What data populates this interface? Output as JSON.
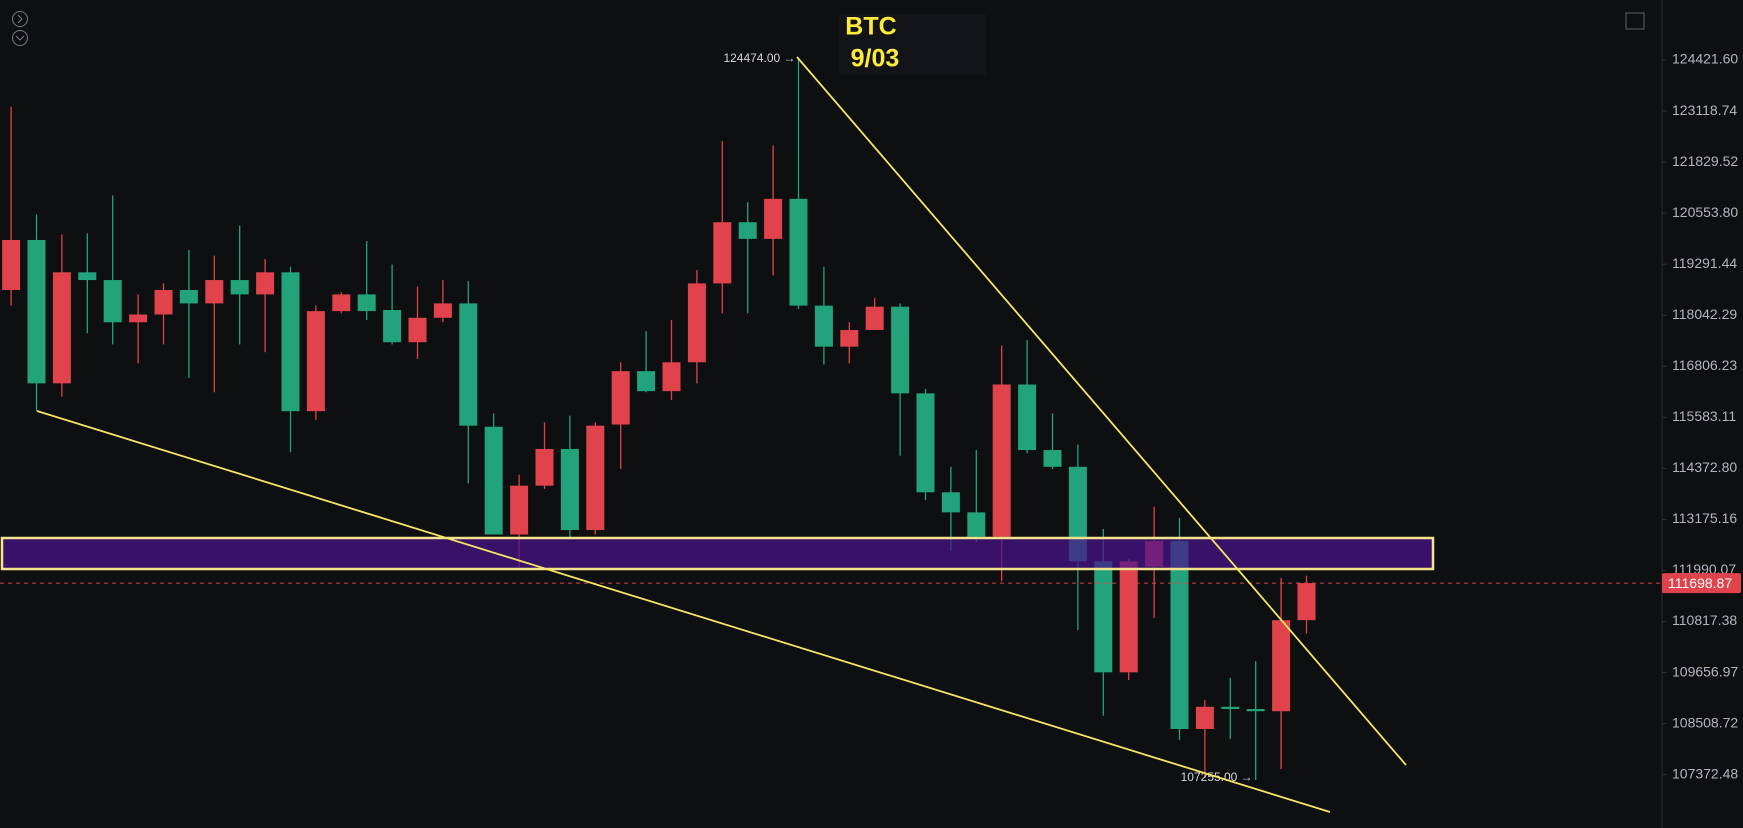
{
  "chart_data": {
    "type": "candlestick",
    "title": "BTC",
    "subtitle": "9/03",
    "log": true,
    "colors": {
      "up": "#e0434c",
      "down": "#23a37c"
    },
    "open": [
      118658,
      119889,
      116396,
      119092,
      118902,
      117872,
      118061,
      118658,
      118331,
      118902,
      118551,
      119092,
      115730,
      118143,
      118551,
      118170,
      117388,
      117980,
      118331,
      115359,
      112824,
      113966,
      114832,
      112927,
      115412,
      116689,
      116209,
      116903,
      118820,
      120329,
      119916,
      120910,
      118277,
      117280,
      117684,
      118251,
      116156,
      113810,
      113340,
      112773,
      116369,
      114806,
      114410,
      112204,
      109662,
      112076,
      112670,
      108388,
      108886,
      108836,
      108786,
      110848
    ],
    "high": [
      123229,
      120521,
      120026,
      120054,
      120994,
      118551,
      118820,
      119642,
      119504,
      120246,
      119422,
      119229,
      118277,
      118603,
      119862,
      119283,
      118739,
      118902,
      118875,
      115676,
      114227,
      115464,
      115623,
      115464,
      116903,
      117657,
      117926,
      119147,
      122358,
      120827,
      122246,
      124474,
      119229,
      117872,
      118467,
      118331,
      116263,
      114410,
      114806,
      117307,
      117441,
      115676,
      114938,
      112953,
      112256,
      113472,
      113212,
      109036,
      109537,
      109915,
      111819,
      111870
    ],
    "low": [
      118277,
      115730,
      116076,
      117603,
      117334,
      116877,
      117334,
      116529,
      116183,
      117334,
      117146,
      114753,
      115517,
      118088,
      117926,
      117334,
      116984,
      117872,
      114018,
      112824,
      112076,
      113888,
      112721,
      112824,
      114357,
      116183,
      115997,
      116396,
      118088,
      118088,
      119011,
      118197,
      116850,
      116877,
      117684,
      114674,
      113627,
      112437,
      112644,
      111742,
      114727,
      114357,
      110620,
      108686,
      109487,
      110900,
      108141,
      107298,
      108165,
      107255,
      107496,
      110544
    ],
    "close": [
      119889,
      116396,
      119092,
      118902,
      117872,
      118061,
      118658,
      118331,
      118902,
      118551,
      119092,
      115730,
      118143,
      118551,
      118143,
      117388,
      117980,
      118331,
      115385,
      112824,
      113966,
      114832,
      112927,
      115385,
      116689,
      116209,
      116903,
      118820,
      120329,
      119916,
      120910,
      118277,
      117280,
      117684,
      118251,
      116156,
      113810,
      113340,
      112773,
      116369,
      114806,
      114410,
      112204,
      109662,
      112204,
      112670,
      108388,
      108886,
      108836,
      108786,
      110848,
      111698.87
    ],
    "ylim": [
      106198,
      125971
    ],
    "yticks": [
      {
        "value": 124421.6,
        "label": "124421.60"
      },
      123118.74,
      121829.52,
      {
        "value": 120553.8,
        "label": "120553.80"
      },
      119291.44,
      118042.29,
      116806.23,
      115583.11,
      {
        "value": 114372.8,
        "label": "114372.80"
      },
      113175.16,
      111990.07,
      110817.38,
      109656.97,
      108508.72,
      107372.48
    ],
    "current_price": 111698.87,
    "high_label": "124474.00 →",
    "low_label": "107255.00 →"
  }
}
